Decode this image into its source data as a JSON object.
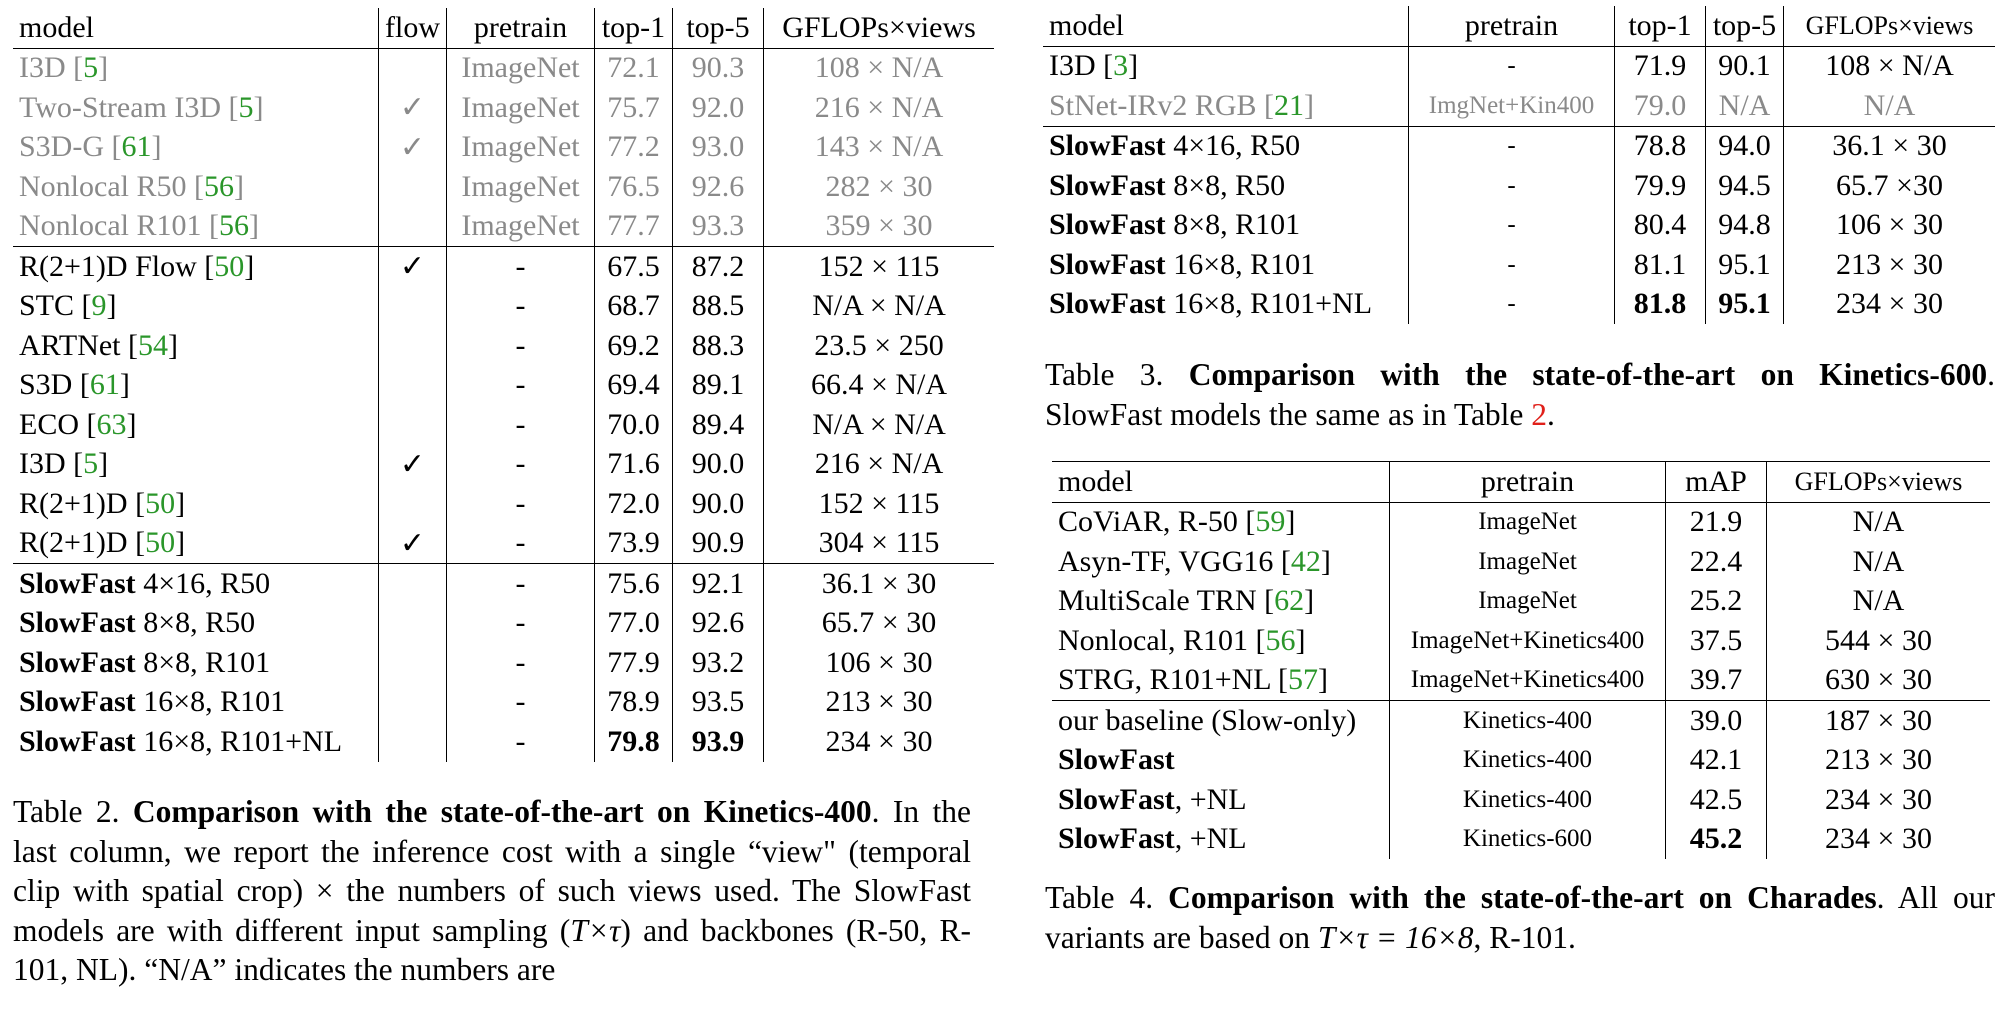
{
  "tables": [
    {
      "header": [
        "model",
        "flow",
        "pretrain",
        "top-1",
        "top-5",
        "GFLOPs×views"
      ],
      "groups": [
        {
          "rows": [
            {
              "muted": true,
              "cells": [
                [
                  {
                    "text": "I3D ["
                  },
                  {
                    "text": "5",
                    "style": "cite"
                  },
                  {
                    "text": "]"
                  }
                ],
                null,
                "ImageNet",
                "72.1",
                "90.3",
                "108 × N/A"
              ]
            },
            {
              "muted": true,
              "cells": [
                [
                  {
                    "text": "Two-Stream I3D ["
                  },
                  {
                    "text": "5",
                    "style": "cite"
                  },
                  {
                    "text": "]"
                  }
                ],
                "✓",
                "ImageNet",
                "75.7",
                "92.0",
                "216 × N/A"
              ]
            },
            {
              "muted": true,
              "cells": [
                [
                  {
                    "text": "S3D-G ["
                  },
                  {
                    "text": "61",
                    "style": "cite"
                  },
                  {
                    "text": "]"
                  }
                ],
                "✓",
                "ImageNet",
                "77.2",
                "93.0",
                "143 × N/A"
              ]
            },
            {
              "muted": true,
              "cells": [
                [
                  {
                    "text": "Nonlocal R50 ["
                  },
                  {
                    "text": "56",
                    "style": "cite"
                  },
                  {
                    "text": "]"
                  }
                ],
                null,
                "ImageNet",
                "76.5",
                "92.6",
                "282 × 30"
              ]
            },
            {
              "muted": true,
              "cells": [
                [
                  {
                    "text": "Nonlocal R101 ["
                  },
                  {
                    "text": "56",
                    "style": "cite"
                  },
                  {
                    "text": "]"
                  }
                ],
                null,
                "ImageNet",
                "77.7",
                "93.3",
                "359 × 30"
              ]
            }
          ]
        },
        {
          "rows": [
            {
              "cells": [
                [
                  {
                    "text": "R(2+1)D Flow ["
                  },
                  {
                    "text": "50",
                    "style": "cite"
                  },
                  {
                    "text": "]"
                  }
                ],
                "✓",
                "-",
                "67.5",
                "87.2",
                "152 × 115"
              ]
            },
            {
              "cells": [
                [
                  {
                    "text": "STC ["
                  },
                  {
                    "text": "9",
                    "style": "cite"
                  },
                  {
                    "text": "]"
                  }
                ],
                null,
                "-",
                "68.7",
                "88.5",
                "N/A × N/A"
              ]
            },
            {
              "cells": [
                [
                  {
                    "text": "ARTNet ["
                  },
                  {
                    "text": "54",
                    "style": "cite"
                  },
                  {
                    "text": "]"
                  }
                ],
                null,
                "-",
                "69.2",
                "88.3",
                "23.5 × 250"
              ]
            },
            {
              "cells": [
                [
                  {
                    "text": "S3D ["
                  },
                  {
                    "text": "61",
                    "style": "cite"
                  },
                  {
                    "text": "]"
                  }
                ],
                null,
                "-",
                "69.4",
                "89.1",
                "66.4 × N/A"
              ]
            },
            {
              "cells": [
                [
                  {
                    "text": "ECO ["
                  },
                  {
                    "text": "63",
                    "style": "cite"
                  },
                  {
                    "text": "]"
                  }
                ],
                null,
                "-",
                "70.0",
                "89.4",
                "N/A × N/A"
              ]
            },
            {
              "cells": [
                [
                  {
                    "text": "I3D ["
                  },
                  {
                    "text": "5",
                    "style": "cite"
                  },
                  {
                    "text": "]"
                  }
                ],
                "✓",
                "-",
                "71.6",
                "90.0",
                "216 × N/A"
              ]
            },
            {
              "cells": [
                [
                  {
                    "text": "R(2+1)D ["
                  },
                  {
                    "text": "50",
                    "style": "cite"
                  },
                  {
                    "text": "]"
                  }
                ],
                null,
                "-",
                "72.0",
                "90.0",
                "152 × 115"
              ]
            },
            {
              "cells": [
                [
                  {
                    "text": "R(2+1)D ["
                  },
                  {
                    "text": "50",
                    "style": "cite"
                  },
                  {
                    "text": "]"
                  }
                ],
                "✓",
                "-",
                "73.9",
                "90.9",
                "304 × 115"
              ]
            }
          ]
        },
        {
          "rows": [
            {
              "cells": [
                [
                  {
                    "text": "SlowFast",
                    "style": "bold"
                  },
                  {
                    "text": " 4×16, R50"
                  }
                ],
                null,
                "-",
                "75.6",
                "92.1",
                "36.1 × 30"
              ]
            },
            {
              "cells": [
                [
                  {
                    "text": "SlowFast",
                    "style": "bold"
                  },
                  {
                    "text": " 8×8, R50"
                  }
                ],
                null,
                "-",
                "77.0",
                "92.6",
                "65.7 × 30"
              ]
            },
            {
              "cells": [
                [
                  {
                    "text": "SlowFast",
                    "style": "bold"
                  },
                  {
                    "text": " 8×8, R101"
                  }
                ],
                null,
                "-",
                "77.9",
                "93.2",
                "106 × 30"
              ]
            },
            {
              "cells": [
                [
                  {
                    "text": "SlowFast",
                    "style": "bold"
                  },
                  {
                    "text": " 16×8, R101"
                  }
                ],
                null,
                "-",
                "78.9",
                "93.5",
                "213 × 30"
              ]
            },
            {
              "cells": [
                [
                  {
                    "text": "SlowFast",
                    "style": "bold"
                  },
                  {
                    "text": " 16×8, R101+NL"
                  }
                ],
                null,
                "-",
                [
                  {
                    "text": "79.8",
                    "style": "bold"
                  }
                ],
                [
                  {
                    "text": "93.9",
                    "style": "bold"
                  }
                ],
                "234 × 30"
              ]
            }
          ]
        }
      ],
      "caption": [
        {
          "text": "Table 2. "
        },
        {
          "text": "Comparison with the state-of-the-art on Kinetics-400",
          "style": "bold"
        },
        {
          "text": ". In the last column, we report the inference cost with a single “view\" (temporal clip with spatial crop) × the numbers of such views used. The SlowFast models are with different input sampling ("
        },
        {
          "text": "T×τ",
          "style": "math"
        },
        {
          "text": ") and backbones (R-50, R-101, NL). “N/A” indicates the numbers are"
        }
      ]
    },
    {
      "header": [
        "model",
        "pretrain",
        "top-1",
        "top-5",
        "GFLOPs×views"
      ],
      "groups": [
        {
          "rows": [
            {
              "cells": [
                [
                  {
                    "text": "I3D ["
                  },
                  {
                    "text": "3",
                    "style": "cite"
                  },
                  {
                    "text": "]"
                  }
                ],
                "-",
                "71.9",
                "90.1",
                "108 × N/A"
              ]
            },
            {
              "muted": true,
              "cells": [
                [
                  {
                    "text": "StNet-IRv2 RGB ["
                  },
                  {
                    "text": "21",
                    "style": "cite"
                  },
                  {
                    "text": "]"
                  }
                ],
                "ImgNet+Kin400",
                "79.0",
                "N/A",
                "N/A"
              ]
            }
          ]
        },
        {
          "rows": [
            {
              "cells": [
                [
                  {
                    "text": "SlowFast",
                    "style": "bold"
                  },
                  {
                    "text": " 4×16, R50"
                  }
                ],
                "-",
                "78.8",
                "94.0",
                "36.1 × 30"
              ]
            },
            {
              "cells": [
                [
                  {
                    "text": "SlowFast",
                    "style": "bold"
                  },
                  {
                    "text": " 8×8, R50"
                  }
                ],
                "-",
                "79.9",
                "94.5",
                "65.7 ×30"
              ]
            },
            {
              "cells": [
                [
                  {
                    "text": "SlowFast",
                    "style": "bold"
                  },
                  {
                    "text": " 8×8, R101"
                  }
                ],
                "-",
                "80.4",
                "94.8",
                "106 × 30"
              ]
            },
            {
              "cells": [
                [
                  {
                    "text": "SlowFast",
                    "style": "bold"
                  },
                  {
                    "text": " 16×8, R101"
                  }
                ],
                "-",
                "81.1",
                "95.1",
                "213 × 30"
              ]
            },
            {
              "cells": [
                [
                  {
                    "text": "SlowFast",
                    "style": "bold"
                  },
                  {
                    "text": " 16×8, R101+NL"
                  }
                ],
                "-",
                [
                  {
                    "text": "81.8",
                    "style": "bold"
                  }
                ],
                [
                  {
                    "text": "95.1",
                    "style": "bold"
                  }
                ],
                "234 × 30"
              ]
            }
          ]
        }
      ],
      "caption": [
        {
          "text": "Table 3. "
        },
        {
          "text": "Comparison with the state-of-the-art on Kinetics-600",
          "style": "bold"
        },
        {
          "text": ". SlowFast models the same as in Table "
        },
        {
          "text": "2",
          "style": "ref"
        },
        {
          "text": "."
        }
      ]
    },
    {
      "header": [
        "model",
        "pretrain",
        "mAP",
        "GFLOPs×views"
      ],
      "groups": [
        {
          "rows": [
            {
              "cells": [
                [
                  {
                    "text": "CoViAR, R-50 ["
                  },
                  {
                    "text": "59",
                    "style": "cite"
                  },
                  {
                    "text": "]"
                  }
                ],
                "ImageNet",
                "21.9",
                "N/A"
              ]
            },
            {
              "cells": [
                [
                  {
                    "text": "Asyn-TF, VGG16 ["
                  },
                  {
                    "text": "42",
                    "style": "cite"
                  },
                  {
                    "text": "]"
                  }
                ],
                "ImageNet",
                "22.4",
                "N/A"
              ]
            },
            {
              "cells": [
                [
                  {
                    "text": "MultiScale TRN ["
                  },
                  {
                    "text": "62",
                    "style": "cite"
                  },
                  {
                    "text": "]"
                  }
                ],
                "ImageNet",
                "25.2",
                "N/A"
              ]
            },
            {
              "cells": [
                [
                  {
                    "text": "Nonlocal, R101 ["
                  },
                  {
                    "text": "56",
                    "style": "cite"
                  },
                  {
                    "text": "]"
                  }
                ],
                "ImageNet+Kinetics400",
                "37.5",
                "544 × 30"
              ]
            },
            {
              "cells": [
                [
                  {
                    "text": "STRG, R101+NL ["
                  },
                  {
                    "text": "57",
                    "style": "cite"
                  },
                  {
                    "text": "]"
                  }
                ],
                "ImageNet+Kinetics400",
                "39.7",
                "630 × 30"
              ]
            }
          ]
        },
        {
          "rows": [
            {
              "cells": [
                "our baseline (Slow-only)",
                "Kinetics-400",
                "39.0",
                "187 × 30"
              ]
            },
            {
              "cells": [
                [
                  {
                    "text": "SlowFast",
                    "style": "bold"
                  }
                ],
                "Kinetics-400",
                "42.1",
                "213 × 30"
              ]
            },
            {
              "cells": [
                [
                  {
                    "text": "SlowFast",
                    "style": "bold"
                  },
                  {
                    "text": ", +NL"
                  }
                ],
                "Kinetics-400",
                "42.5",
                "234 × 30"
              ]
            },
            {
              "cells": [
                [
                  {
                    "text": "SlowFast",
                    "style": "bold"
                  },
                  {
                    "text": ", +NL"
                  }
                ],
                "Kinetics-600",
                [
                  {
                    "text": "45.2",
                    "style": "bold"
                  }
                ],
                "234 × 30"
              ]
            }
          ]
        }
      ],
      "caption": [
        {
          "text": "Table 4. "
        },
        {
          "text": "Comparison with the state-of-the-art on Charades",
          "style": "bold"
        },
        {
          "text": ". All our variants are based on "
        },
        {
          "text": "T×τ = 16×8",
          "style": "math"
        },
        {
          "text": ", R-101."
        }
      ]
    }
  ]
}
